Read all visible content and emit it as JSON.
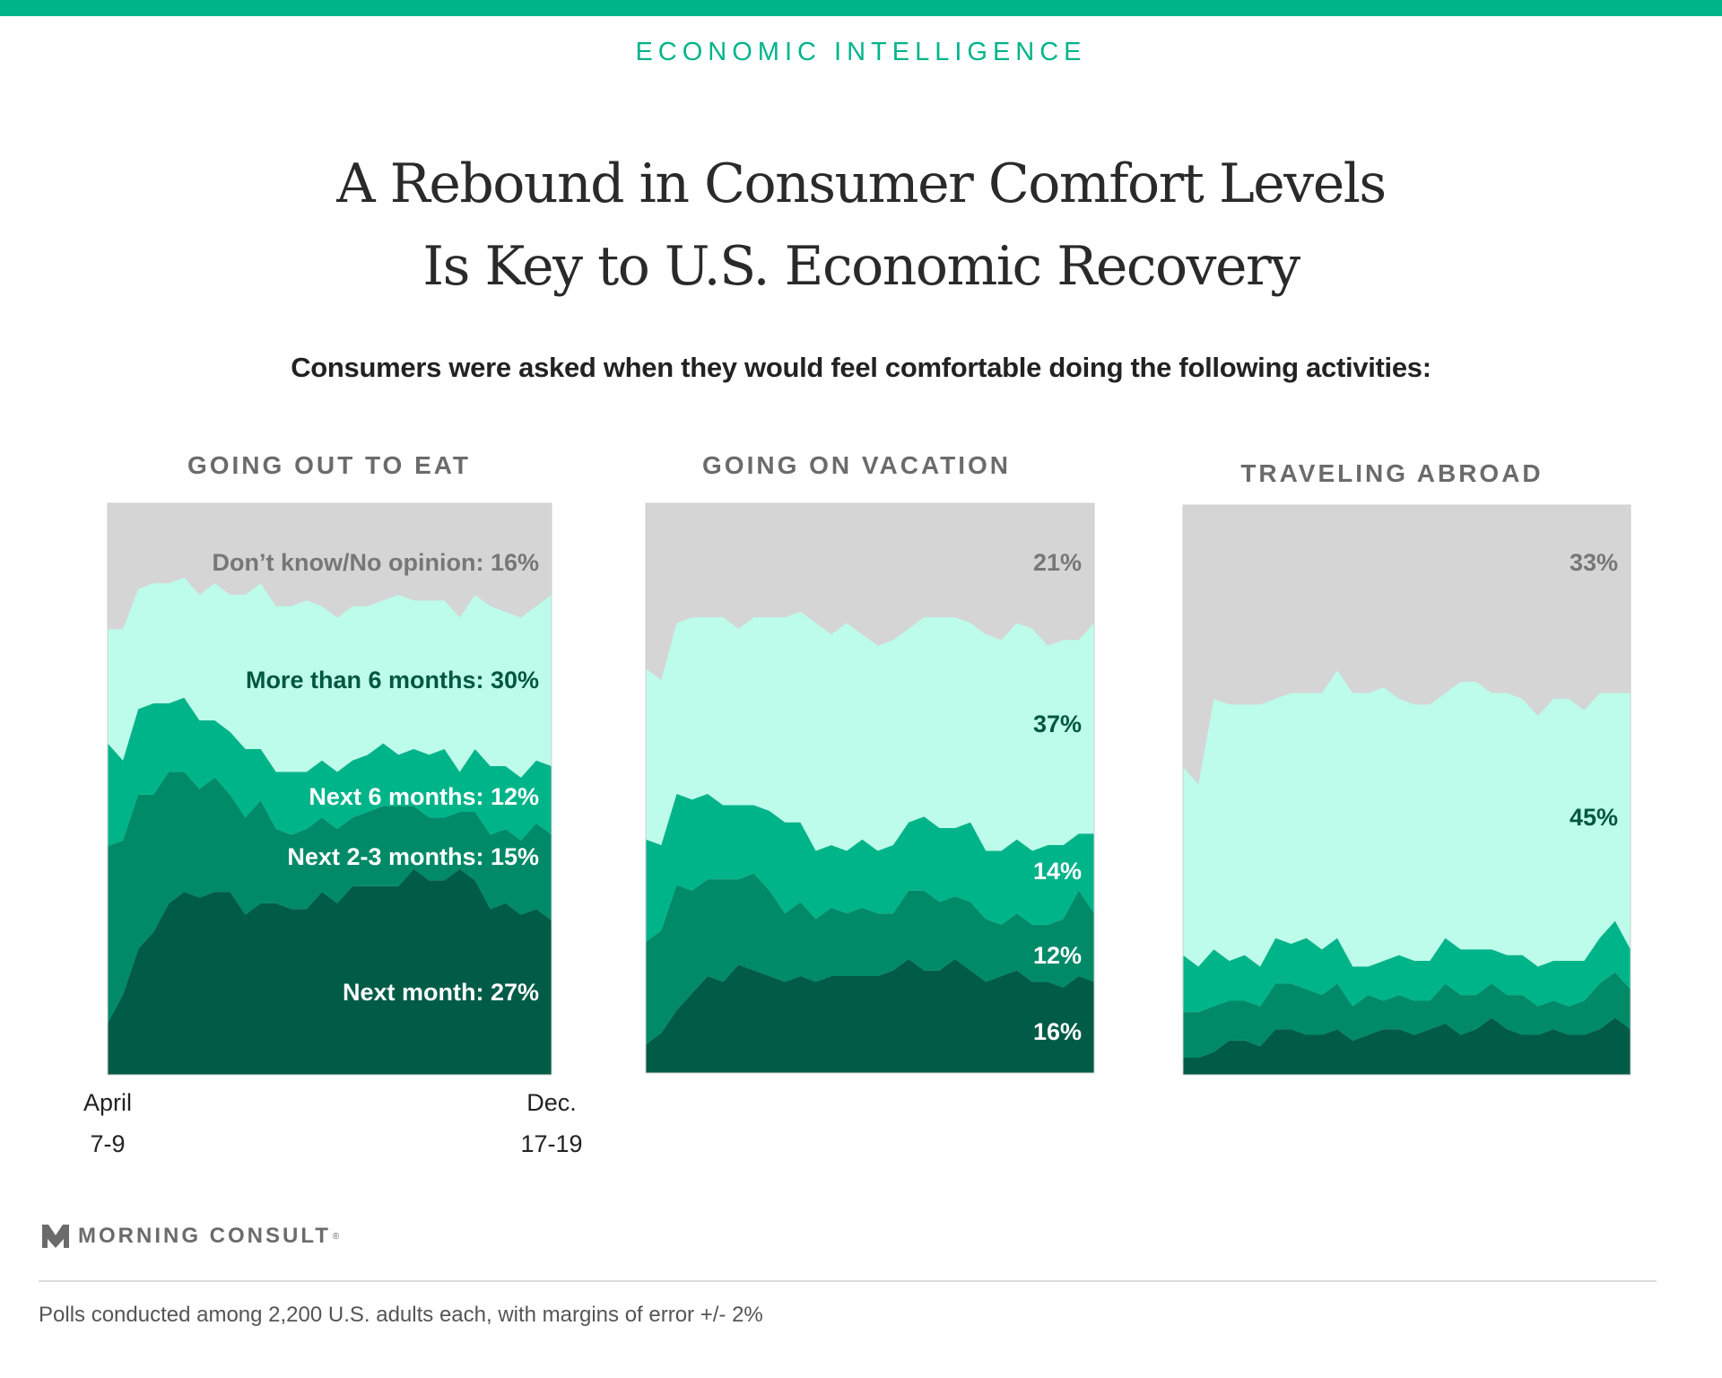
{
  "header": {
    "kicker": "ECONOMIC INTELLIGENCE",
    "title_line1": "A Rebound in Consumer Comfort Levels",
    "title_line2": "Is Key to U.S. Economic Recovery",
    "subtitle": "Consumers were asked when they would feel comfortable doing the following activities:"
  },
  "x_axis": {
    "start_line1": "April",
    "start_line2": "7-9",
    "end_line1": "Dec.",
    "end_line2": "17-19"
  },
  "colors": {
    "dont_know": "#d5d5d5",
    "more_than_6_months": "#bdfcea",
    "next_6_months": "#00b48a",
    "next_2_3_months": "#008a68",
    "next_month": "#005c47",
    "accent": "#00b48a"
  },
  "chart_data": [
    {
      "type": "area",
      "title": "GOING OUT TO EAT",
      "stacked": true,
      "ylim": [
        0,
        100
      ],
      "x_start": "April 7-9",
      "x_end": "Dec. 17-19",
      "series": [
        {
          "name": "Next month",
          "values": [
            9,
            14,
            22,
            25,
            30,
            32,
            31,
            32,
            32,
            28,
            30,
            30,
            29,
            29,
            32,
            30,
            33,
            33,
            33,
            33,
            36,
            34,
            34,
            36,
            34,
            29,
            30,
            28,
            29,
            27
          ],
          "label": "Next month: 27%",
          "label_color": "#ffffff"
        },
        {
          "name": "Next 2-3 months",
          "values": [
            31,
            27,
            27,
            24,
            23,
            21,
            19,
            20,
            17,
            17,
            18,
            13,
            13,
            14,
            13,
            13,
            12,
            13,
            14,
            14,
            11,
            11,
            11,
            10,
            12,
            13,
            13,
            13,
            15,
            15
          ],
          "label": "Next 2-3 months: 15%",
          "label_color": "#ffffff"
        },
        {
          "name": "Next 6 months",
          "values": [
            18,
            14,
            15,
            16,
            12,
            13,
            12,
            10,
            11,
            12,
            9,
            10,
            11,
            10,
            10,
            10,
            10,
            10,
            11,
            9,
            10,
            11,
            12,
            7,
            11,
            12,
            11,
            11,
            11,
            12
          ],
          "label": "Next 6 months: 12%",
          "label_color": "#ffffff"
        },
        {
          "name": "More than 6 months",
          "values": [
            20,
            23,
            21,
            21,
            21,
            21,
            22,
            24,
            24,
            27,
            29,
            29,
            29,
            30,
            27,
            27,
            27,
            26,
            25,
            28,
            26,
            27,
            26,
            27,
            27,
            28,
            27,
            28,
            27,
            30
          ],
          "label": "More than 6 months: 30%",
          "label_color": "#00573f"
        },
        {
          "name": "Don't know/No opinion",
          "values": [
            22,
            22,
            15,
            14,
            14,
            13,
            16,
            14,
            16,
            16,
            14,
            18,
            18,
            17,
            18,
            20,
            18,
            18,
            17,
            16,
            17,
            17,
            17,
            20,
            16,
            18,
            19,
            20,
            18,
            16
          ],
          "label": "Don’t know/No opinion: 16%",
          "label_color": "#777777"
        }
      ]
    },
    {
      "type": "area",
      "title": "GOING ON VACATION",
      "stacked": true,
      "ylim": [
        0,
        100
      ],
      "series": [
        {
          "name": "Next month",
          "values": [
            5,
            7,
            11,
            14,
            17,
            16,
            19,
            18,
            17,
            16,
            17,
            16,
            17,
            17,
            17,
            17,
            18,
            20,
            18,
            18,
            20,
            18,
            16,
            17,
            18,
            16,
            16,
            15,
            17,
            16
          ],
          "label": "16%",
          "label_color": "#ffffff"
        },
        {
          "name": "Next 2-3 months",
          "values": [
            18,
            18,
            22,
            18,
            17,
            18,
            15,
            17,
            15,
            12,
            13,
            11,
            12,
            11,
            12,
            11,
            10,
            12,
            14,
            12,
            11,
            12,
            11,
            9,
            10,
            10,
            10,
            12,
            15,
            12
          ],
          "label": "12%",
          "label_color": "#ffffff"
        },
        {
          "name": "Next 6 months",
          "values": [
            18,
            15,
            16,
            16,
            15,
            13,
            13,
            12,
            14,
            16,
            14,
            12,
            11,
            11,
            12,
            11,
            12,
            12,
            13,
            13,
            12,
            14,
            12,
            13,
            13,
            13,
            14,
            13,
            10,
            14
          ],
          "label": "14%",
          "label_color": "#ffffff"
        },
        {
          "name": "More than 6 months",
          "values": [
            30,
            29,
            30,
            32,
            31,
            33,
            31,
            33,
            34,
            36,
            37,
            40,
            37,
            40,
            36,
            36,
            36,
            34,
            35,
            37,
            37,
            35,
            38,
            37,
            38,
            39,
            35,
            36,
            34,
            37
          ],
          "label": "37%",
          "label_color": "#00573f"
        },
        {
          "name": "Don't know/No opinion",
          "values": [
            29,
            31,
            21,
            20,
            20,
            20,
            22,
            20,
            20,
            20,
            19,
            21,
            23,
            21,
            23,
            25,
            24,
            22,
            20,
            20,
            20,
            21,
            23,
            24,
            21,
            22,
            25,
            24,
            24,
            21
          ],
          "label": "21%",
          "label_color": "#777777"
        }
      ]
    },
    {
      "type": "area",
      "title": "TRAVELING ABROAD",
      "stacked": true,
      "ylim": [
        0,
        100
      ],
      "series": [
        {
          "name": "Next month",
          "values": [
            3,
            3,
            4,
            6,
            6,
            5,
            8,
            8,
            7,
            7,
            8,
            6,
            7,
            8,
            8,
            7,
            8,
            9,
            7,
            8,
            10,
            8,
            7,
            7,
            8,
            7,
            7,
            8,
            10,
            8
          ],
          "label": null,
          "label_color": "#ffffff"
        },
        {
          "name": "Next 2-3 months",
          "values": [
            8,
            8,
            8,
            7,
            7,
            7,
            8,
            8,
            8,
            7,
            8,
            6,
            7,
            5,
            6,
            6,
            5,
            7,
            7,
            6,
            6,
            6,
            7,
            5,
            5,
            5,
            6,
            8,
            8,
            7
          ],
          "label": null,
          "label_color": "#ffffff"
        },
        {
          "name": "Next 6 months",
          "values": [
            10,
            8,
            10,
            7,
            8,
            7,
            8,
            7,
            9,
            8,
            8,
            7,
            5,
            7,
            7,
            7,
            7,
            8,
            8,
            8,
            6,
            7,
            7,
            7,
            7,
            8,
            7,
            8,
            9,
            7
          ],
          "label": null,
          "label_color": "#ffffff"
        },
        {
          "name": "More than 6 months",
          "values": [
            33,
            32,
            44,
            45,
            44,
            46,
            42,
            44,
            43,
            45,
            47,
            48,
            48,
            48,
            45,
            45,
            45,
            43,
            47,
            47,
            45,
            46,
            45,
            44,
            46,
            46,
            44,
            43,
            40,
            45
          ],
          "label": "45%",
          "label_color": "#00573f"
        },
        {
          "name": "Don't know/No opinion",
          "values": [
            46,
            49,
            34,
            35,
            35,
            35,
            34,
            33,
            33,
            33,
            29,
            33,
            33,
            32,
            34,
            35,
            35,
            33,
            31,
            31,
            33,
            33,
            34,
            37,
            34,
            34,
            36,
            33,
            33,
            33
          ],
          "label": "33%",
          "label_color": "#777777"
        }
      ]
    }
  ],
  "brand": {
    "name": "MORNING CONSULT",
    "mark": "®"
  },
  "footer": {
    "note": "Polls conducted among 2,200 U.S. adults each, with margins of error +/- 2%"
  }
}
